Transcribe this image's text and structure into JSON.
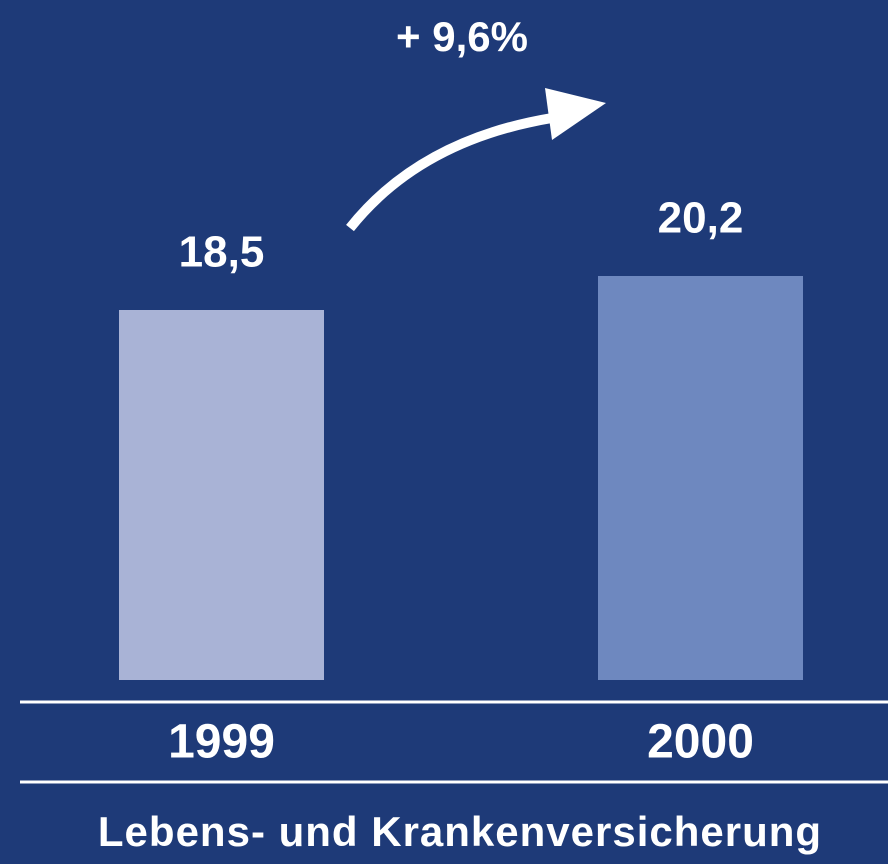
{
  "chart_data": {
    "type": "bar",
    "title": "Lebens- und Krankenversicherung",
    "annotation": "+ 9,6%",
    "categories": [
      "1999",
      "2000"
    ],
    "values": [
      18.5,
      20.2
    ],
    "value_labels": [
      "18,5",
      "20,2"
    ],
    "colors": [
      "#a9b3d6",
      "#6e88bf"
    ],
    "background": "#1e3a78"
  }
}
